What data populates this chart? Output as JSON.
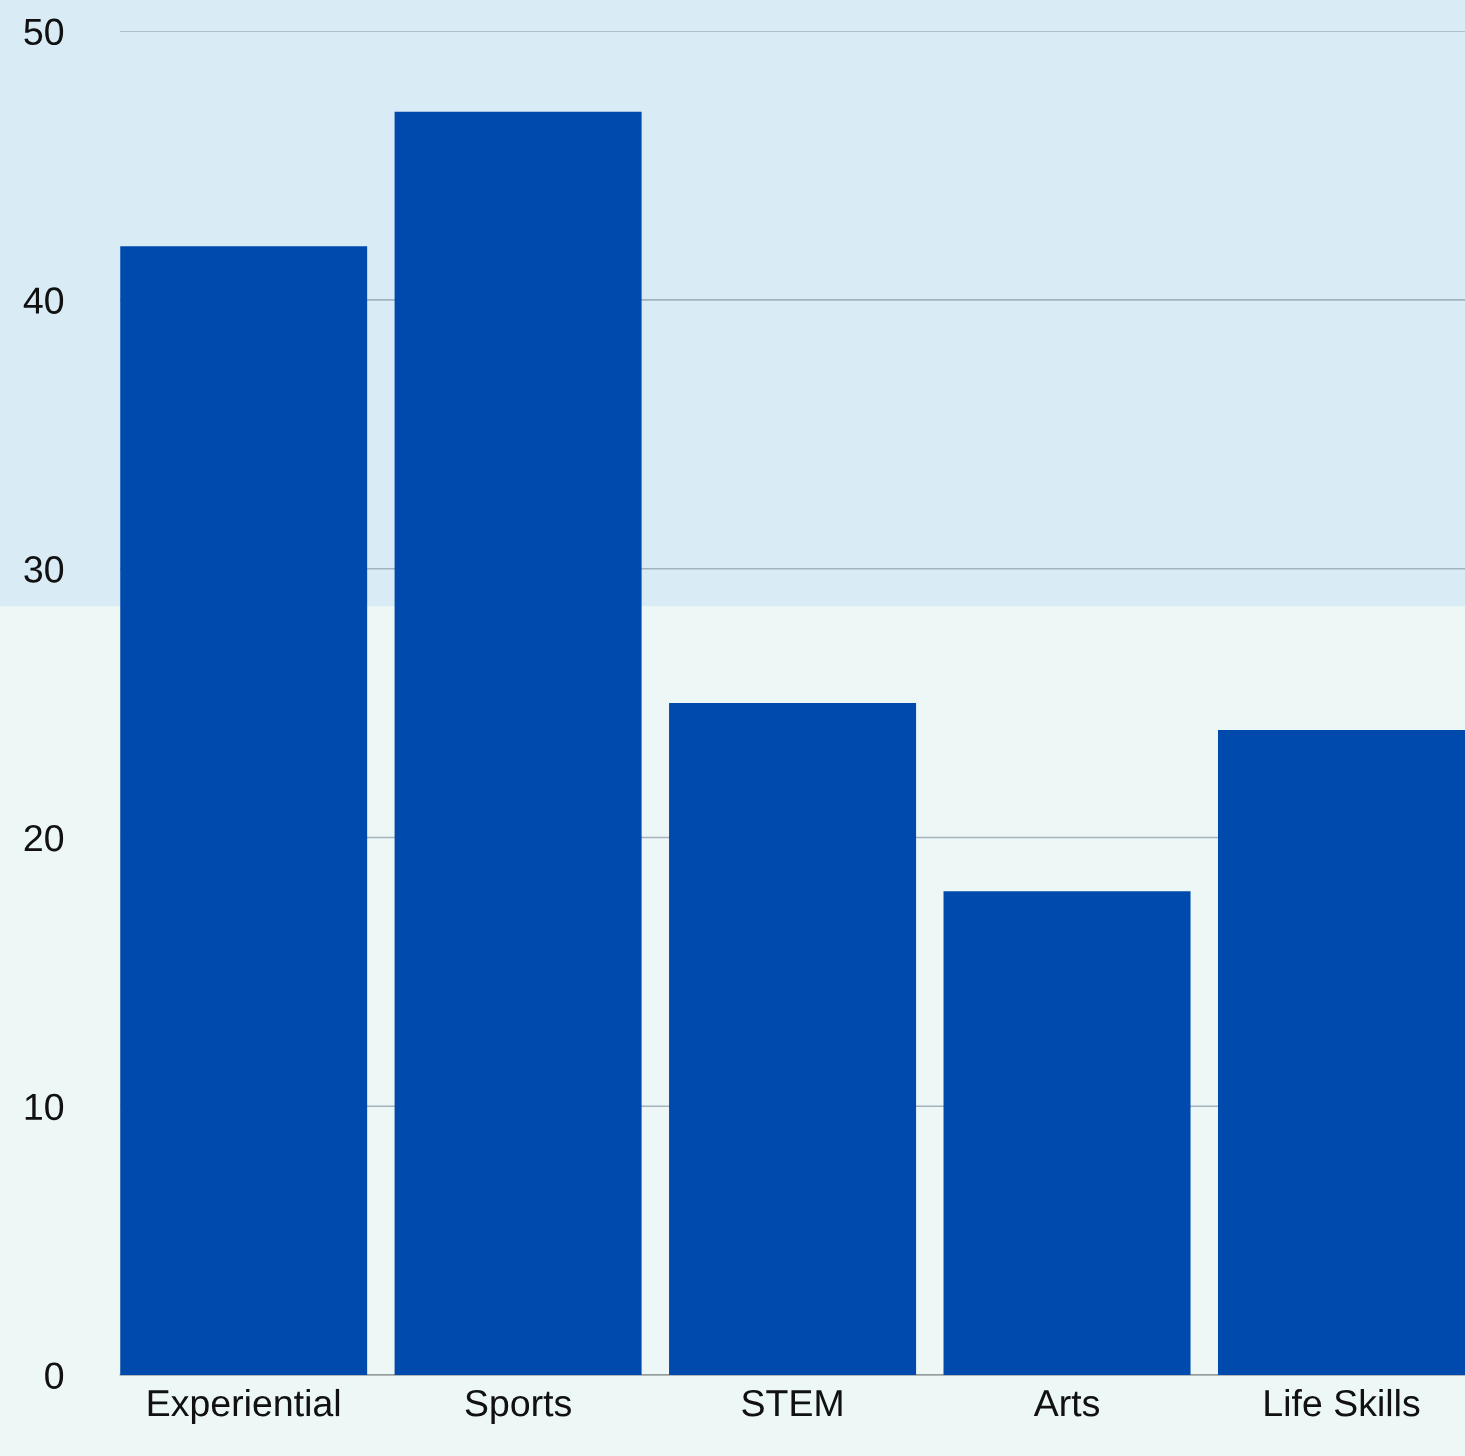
{
  "chart_data": {
    "type": "bar",
    "categories": [
      "Experiential",
      "Sports",
      "STEM",
      "Arts",
      "Life Skills"
    ],
    "values": [
      42,
      47,
      25,
      18,
      24
    ],
    "color": "#004aad",
    "ylim": [
      0,
      50
    ],
    "yticks": [
      0,
      10,
      20,
      30,
      40,
      50
    ],
    "grid": "y",
    "bands": [
      {
        "axis": "y",
        "from": 28.6,
        "to": 50,
        "color": "#d9ecf5"
      }
    ]
  }
}
